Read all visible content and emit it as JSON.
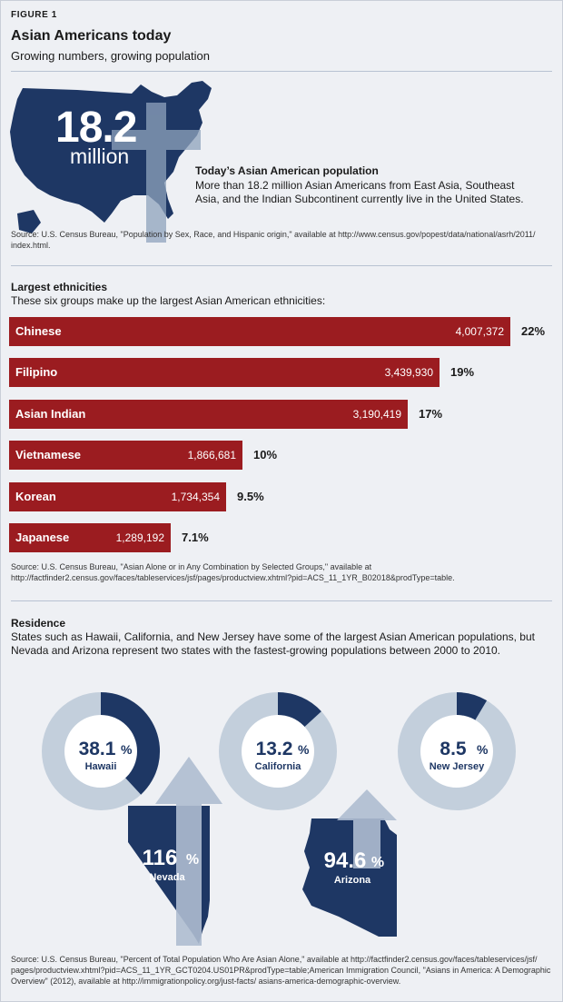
{
  "figure_label": "FIGURE 1",
  "title": "Asian Americans today",
  "subtitle": "Growing numbers, growing population",
  "hero": {
    "number": "18.2",
    "unit": "million",
    "heading": "Today’s Asian American population",
    "body": "More than 18.2 million Asian Americans from East Asia, Southeast Asia, and the Indian Subcontinent currently live in the United States.",
    "source": "Source: U.S. Census Bureau, \"Population by Sex, Race, and Hispanic origin,\" available at http://www.census.gov/popest/data/national/asrh/2011/ index.html."
  },
  "ethnicities": {
    "heading": "Largest ethnicities",
    "description": "These six groups make up the largest Asian American ethnicities:",
    "source": "Source: U.S. Census Bureau, \"Asian Alone or in Any Combination by Selected Groups,\" available at http://factfinder2.census.gov/faces/tableservices/jsf/pages/productview.xhtml?pid=ACS_11_1YR_B02018&prodType=table."
  },
  "residence": {
    "heading": "Residence",
    "description": "States such as Hawaii, California, and New Jersey have some of the largest Asian American populations, but Nevada and Arizona represent two states with the fastest-growing populations between 2000 to 2010.",
    "source": "Source: U.S. Census Bureau, \"Percent of Total Population Who Are Asian Alone,\" available at http://factfinder2.census.gov/faces/tableservices/jsf/ pages/productview.xhtml?pid=ACS_11_1YR_GCT0204.US01PR&prodType=table;American Immigration Council, \"Asians in America: A Demographic Overview\" (2012), available at http://immigrationpolicy.org/just-facts/ asians-america-demographic-overview."
  },
  "chart_data": [
    {
      "type": "bar",
      "categories": [
        "Chinese",
        "Filipino",
        "Asian Indian",
        "Vietnamese",
        "Korean",
        "Japanese"
      ],
      "values": [
        4007372,
        3439930,
        3190419,
        1866681,
        1734354,
        1289192
      ],
      "value_labels": [
        "4,007,372",
        "3,439,930",
        "3,190,419",
        "1,866,681",
        "1,734,354",
        "1,289,192"
      ],
      "percent_labels": [
        "22%",
        "19%",
        "17%",
        "10%",
        "9.5%",
        "7.1%"
      ],
      "orientation": "horizontal",
      "bar_color": "#9b1c20"
    },
    {
      "type": "pie",
      "style": "donut",
      "slices": [
        {
          "state": "Hawaii",
          "value": 38.1,
          "label": "38.1",
          "unit": "%"
        },
        {
          "state": "California",
          "value": 13.2,
          "label": "13.2",
          "unit": "%"
        },
        {
          "state": "New Jersey",
          "value": 8.5,
          "label": "8.5",
          "unit": "%"
        }
      ],
      "colors": {
        "filled": "#1e3764",
        "remainder": "#c3cfdc"
      }
    },
    {
      "type": "other",
      "description_of_marks": "growth arrows over state shapes",
      "growth": [
        {
          "state": "Nevada",
          "value": 116,
          "label": "116",
          "unit": "%"
        },
        {
          "state": "Arizona",
          "value": 94.6,
          "label": "94.6",
          "unit": "%"
        }
      ],
      "colors": {
        "state": "#1e3764",
        "arrow": "#aebdd0"
      }
    }
  ]
}
